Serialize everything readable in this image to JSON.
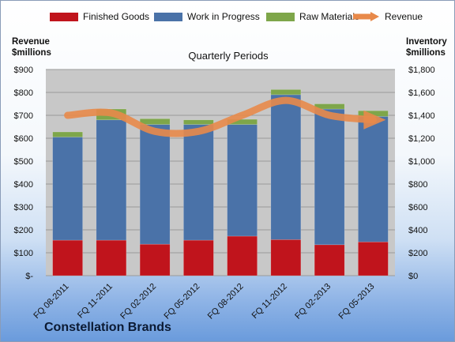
{
  "legend": {
    "finished_goods": "Finished Goods",
    "work_in_progress": "Work in Progress",
    "raw_materials": "Raw Materials",
    "revenue": "Revenue"
  },
  "left_axis_title": {
    "line1": "Revenue",
    "line2": "$millions"
  },
  "right_axis_title": {
    "line1": "Inventory",
    "line2": "$millions"
  },
  "subtitle": "Quarterly Periods",
  "company": "Constellation Brands",
  "colors": {
    "finished_goods": "#c0141c",
    "work_in_progress": "#4a72a8",
    "raw_materials": "#7ea64a",
    "revenue": "#e8894a",
    "plot_bg": "#c8c8c8"
  },
  "chart_data": {
    "type": "bar",
    "stacked": true,
    "categories": [
      "FQ 08-2011",
      "FQ 11-2011",
      "FQ 02-2012",
      "FQ 05-2012",
      "FQ 08-2012",
      "FQ 11-2012",
      "FQ 02-2013",
      "FQ 05-2013"
    ],
    "series": [
      {
        "name": "Finished Goods",
        "axis": "right",
        "values": [
          310,
          310,
          275,
          310,
          345,
          315,
          270,
          295
        ]
      },
      {
        "name": "Work in Progress",
        "axis": "right",
        "values": [
          900,
          1050,
          1045,
          1010,
          975,
          1265,
          1185,
          1095
        ]
      },
      {
        "name": "Raw Materials",
        "axis": "right",
        "values": [
          45,
          95,
          50,
          40,
          45,
          45,
          45,
          50
        ]
      },
      {
        "name": "Revenue",
        "axis": "left",
        "type": "line",
        "values": [
          700,
          710,
          630,
          630,
          700,
          765,
          700,
          680
        ]
      }
    ],
    "left_axis": {
      "ylim": [
        0,
        900
      ],
      "ticks": [
        "$-",
        "$100",
        "$200",
        "$300",
        "$400",
        "$500",
        "$600",
        "$700",
        "$800",
        "$900"
      ]
    },
    "right_axis": {
      "ylim": [
        0,
        1800
      ],
      "ticks": [
        "$0",
        "$200",
        "$400",
        "$600",
        "$800",
        "$1,000",
        "$1,200",
        "$1,400",
        "$1,600",
        "$1,800"
      ]
    },
    "grid": true,
    "legend_position": "top"
  }
}
